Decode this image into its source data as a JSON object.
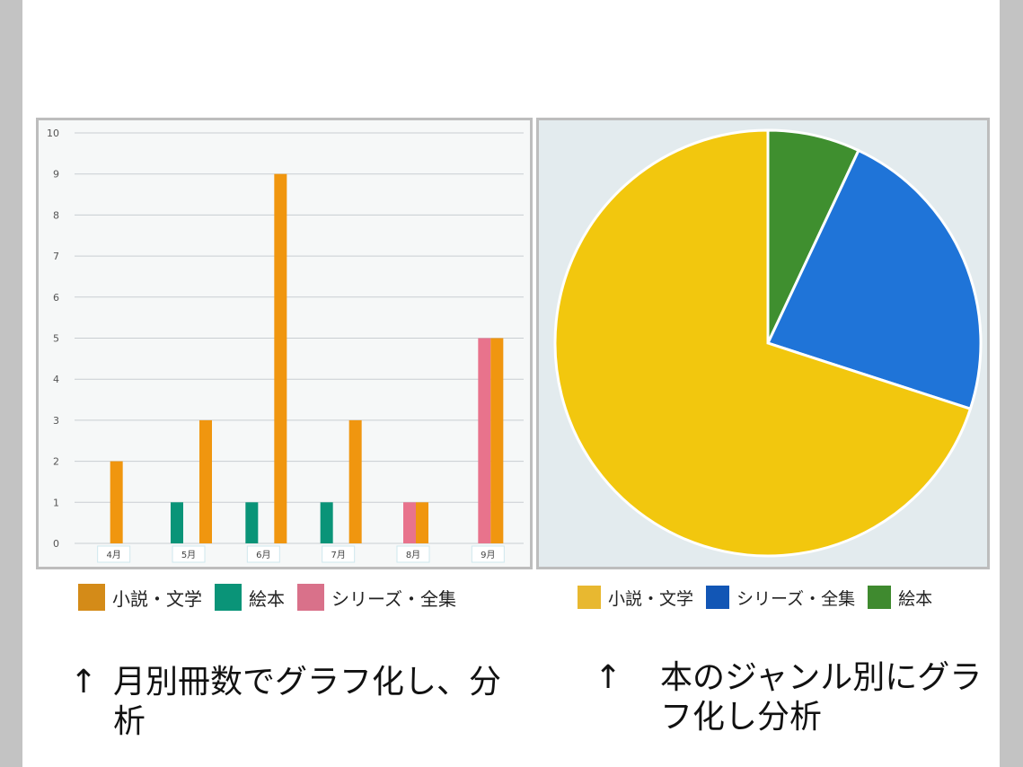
{
  "bar_legend": [
    {
      "label": "小説・文学",
      "color": "#d48b18"
    },
    {
      "label": "絵本",
      "color": "#0a9478"
    },
    {
      "label": "シリーズ・全集",
      "color": "#d9718a"
    }
  ],
  "pie_legend": [
    {
      "label": "小説・文学",
      "color": "#e8b830"
    },
    {
      "label": "シリーズ・全集",
      "color": "#1256b5"
    },
    {
      "label": "絵本",
      "color": "#3f8a2f"
    }
  ],
  "captions": {
    "left_arrow": "↑",
    "left_text": "月別冊数でグラフ化し、分析",
    "right_arrow": "↑",
    "right_text": "本のジャンル別にグラフ化し分析"
  },
  "chart_data": [
    {
      "type": "bar",
      "categories": [
        "4月",
        "5月",
        "6月",
        "7月",
        "8月",
        "9月"
      ],
      "series": [
        {
          "name": "小説・文学",
          "color": "#f0960f",
          "values": [
            2,
            3,
            9,
            3,
            1,
            5
          ]
        },
        {
          "name": "絵本",
          "color": "#0a9478",
          "values": [
            0,
            1,
            1,
            1,
            0,
            0
          ]
        },
        {
          "name": "シリーズ・全集",
          "color": "#e8738c",
          "values": [
            0,
            0,
            0,
            0,
            1,
            5
          ]
        }
      ],
      "ylim": [
        0,
        10
      ],
      "yticks": [
        0,
        1,
        2,
        3,
        4,
        5,
        6,
        7,
        8,
        9,
        10
      ],
      "grid": true
    },
    {
      "type": "pie",
      "slices": [
        {
          "name": "小説・文学",
          "value": 70,
          "color": "#f2c70e"
        },
        {
          "name": "シリーズ・全集",
          "value": 23,
          "color": "#1f74d8"
        },
        {
          "name": "絵本",
          "value": 7,
          "color": "#3f8f2f"
        }
      ]
    }
  ]
}
